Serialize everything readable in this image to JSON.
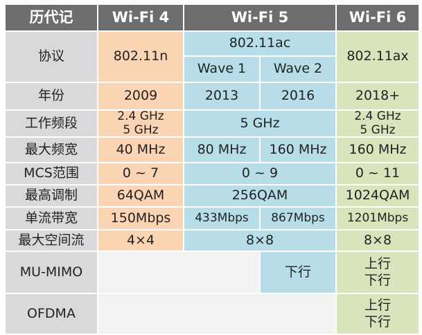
{
  "header": {
    "label": "历代记",
    "wifi4": "Wi-Fi 4",
    "wifi5": "Wi-Fi 5",
    "wifi6": "Wi-Fi 6"
  },
  "rows": {
    "protocol": {
      "label": "协议",
      "wifi4": "802.11n",
      "wifi5": "802.11ac",
      "wave1": "Wave 1",
      "wave2": "Wave 2",
      "wifi6": "802.11ax"
    },
    "year": {
      "label": "年份",
      "wifi4": "2009",
      "wave1": "2013",
      "wave2": "2016",
      "wifi6": "2018+"
    },
    "band": {
      "label": "工作频段",
      "wifi4": [
        "2.4 GHz",
        "5 GHz"
      ],
      "wifi5": "5 GHz",
      "wifi6": [
        "2.4 GHz",
        "5 GHz"
      ]
    },
    "bandwidth": {
      "label": "最大频宽",
      "wifi4": "40 MHz",
      "wave1": "80 MHz",
      "wave2": "160 MHz",
      "wifi6": "160 MHz"
    },
    "mcs": {
      "label": "MCS范围",
      "wifi4": "0 ~ 7",
      "wifi5": "0 ~ 9",
      "wifi6": "0 ~ 11"
    },
    "modulation": {
      "label": "最高调制",
      "wifi4": "64QAM",
      "wifi5": "256QAM",
      "wifi6": "1024QAM"
    },
    "stream_rate": {
      "label": "单流带宽",
      "wifi4": "150Mbps",
      "wave1": "433Mbps",
      "wave2": "867Mbps",
      "wifi6": "1201Mbps"
    },
    "spatial": {
      "label": "最大空间流",
      "wifi4": "4×4",
      "wifi5": "8×8",
      "wifi6": "8×8"
    },
    "mumimo": {
      "label": "MU-MIMO",
      "wave2": "下行",
      "wifi6": [
        "上行",
        "下行"
      ]
    },
    "ofdma": {
      "label": "OFDMA",
      "wifi6": [
        "上行",
        "下行"
      ]
    }
  },
  "colors": {
    "header": "#6d6d6d",
    "label": "#d9d9d9",
    "wifi4": "#fbd4b4",
    "wifi5": "#b7dde8",
    "wifi6": "#d7e4bc",
    "empty": "#f2f2f2"
  }
}
